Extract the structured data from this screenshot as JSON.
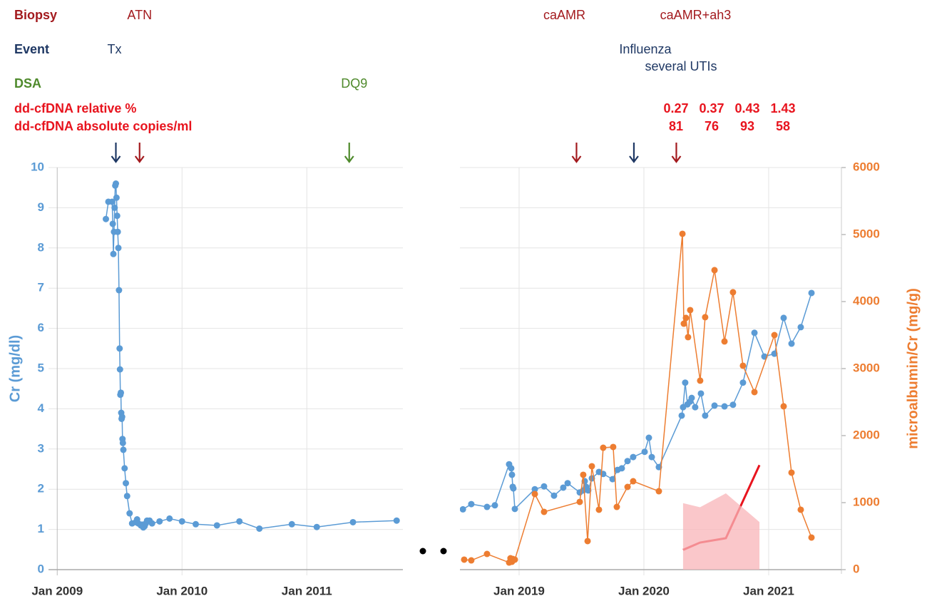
{
  "annotations": [
    {
      "label": "Biopsy",
      "color": "#a31a1e",
      "items": [
        {
          "label": "ATN",
          "x": 2009.66
        },
        {
          "label": "caAMR",
          "x": 2019.46
        },
        {
          "label": "caAMR+ah3",
          "x": 2020.26
        }
      ]
    },
    {
      "label": "Event",
      "color": "#1f3864",
      "items": [
        {
          "label": "Tx",
          "x": 2009.47
        },
        {
          "label": "Influenza",
          "sublabel": "several UTIs",
          "x": 2019.92
        }
      ]
    },
    {
      "label": "DSA",
      "color": "#4f8a2c",
      "items": [
        {
          "label": "DQ9",
          "x": 2011.34
        }
      ]
    }
  ],
  "chart_data": [
    {
      "type": "line",
      "ylabel": "Cr (mg/dl)",
      "xlim": [
        2008.93,
        2011.77
      ],
      "ylim": [
        0,
        10
      ],
      "yticks": [
        0,
        1,
        2,
        3,
        4,
        5,
        6,
        7,
        8,
        9,
        10
      ],
      "xticks": [
        {
          "value": 2009,
          "label": "Jan 2009"
        },
        {
          "value": 2010,
          "label": "Jan 2010"
        },
        {
          "value": 2011,
          "label": "Jan 2011"
        }
      ],
      "grid": true,
      "series": [
        {
          "color": "#5b9bd5",
          "x": [
            2009.39,
            2009.41,
            2009.44,
            2009.445,
            2009.45,
            2009.455,
            2009.46,
            2009.465,
            2009.47,
            2009.475,
            2009.48,
            2009.485,
            2009.49,
            2009.495,
            2009.5,
            2009.503,
            2009.506,
            2009.51,
            2009.513,
            2009.516,
            2009.52,
            2009.523,
            2009.526,
            2009.53,
            2009.54,
            2009.55,
            2009.56,
            2009.58,
            2009.6,
            2009.63,
            2009.64,
            2009.65,
            2009.67,
            2009.68,
            2009.69,
            2009.7,
            2009.71,
            2009.72,
            2009.74,
            2009.76,
            2009.82,
            2009.9,
            2010.0,
            2010.11,
            2010.28,
            2010.46,
            2010.62,
            2010.88,
            2011.08,
            2011.37,
            2011.72
          ],
          "values": [
            8.72,
            9.15,
            9.15,
            8.6,
            7.85,
            8.4,
            9.0,
            9.55,
            9.6,
            9.25,
            8.8,
            8.4,
            8.0,
            6.95,
            5.5,
            4.98,
            4.35,
            4.4,
            3.9,
            3.75,
            3.8,
            3.25,
            3.15,
            2.98,
            2.52,
            2.15,
            1.83,
            1.4,
            1.15,
            1.18,
            1.25,
            1.15,
            1.1,
            1.12,
            1.05,
            1.08,
            1.15,
            1.22,
            1.22,
            1.15,
            1.2,
            1.27,
            1.2,
            1.13,
            1.1,
            1.2,
            1.02,
            1.13,
            1.06,
            1.18,
            1.22
          ]
        }
      ]
    },
    {
      "type": "line",
      "y2label": "microalbumin/Cr (mg/g)",
      "xlim": [
        2018.526,
        2021.583
      ],
      "ylim": [
        0,
        10
      ],
      "y2lim": [
        0,
        6000
      ],
      "y2ticks": [
        0,
        1000,
        2000,
        3000,
        4000,
        5000,
        6000
      ],
      "y3lim": [
        0,
        5.5
      ],
      "y4lim": [
        0,
        490
      ],
      "xticks": [
        {
          "value": 2019,
          "label": "Jan 2019"
        },
        {
          "value": 2020,
          "label": "Jan 2020"
        },
        {
          "value": 2021,
          "label": "Jan 2021"
        }
      ],
      "grid": true,
      "series": [
        {
          "color": "#5b9bd5",
          "x": [
            2018.55,
            2018.617,
            2018.743,
            2018.806,
            2018.92,
            2018.937,
            2018.943,
            2018.949,
            2018.954,
            2018.966,
            2019.126,
            2019.2,
            2019.28,
            2019.354,
            2019.389,
            2019.486,
            2019.514,
            2019.526,
            2019.537,
            2019.554,
            2019.583,
            2019.64,
            2019.674,
            2019.749,
            2019.789,
            2019.823,
            2019.869,
            2019.914,
            2020.006,
            2020.04,
            2020.063,
            2020.12,
            2020.303,
            2020.314,
            2020.331,
            2020.349,
            2020.371,
            2020.383,
            2020.411,
            2020.457,
            2020.491,
            2020.566,
            2020.646,
            2020.714,
            2020.794,
            2020.886,
            2020.966,
            2021.046,
            2021.12,
            2021.183,
            2021.257,
            2021.343
          ],
          "values": [
            1.5,
            1.63,
            1.56,
            1.6,
            2.62,
            2.52,
            2.36,
            2.06,
            2.02,
            1.51,
            2.0,
            2.07,
            1.84,
            2.04,
            2.15,
            1.92,
            1.97,
            2.2,
            2.06,
            1.97,
            2.27,
            2.43,
            2.38,
            2.25,
            2.48,
            2.52,
            2.7,
            2.8,
            2.93,
            3.28,
            2.8,
            2.55,
            3.83,
            4.04,
            4.65,
            4.11,
            4.18,
            4.27,
            4.04,
            4.38,
            3.83,
            4.08,
            4.06,
            4.1,
            4.65,
            5.89,
            5.3,
            5.37,
            6.26,
            5.62,
            6.03,
            6.88
          ]
        },
        {
          "color": "#ed7d31",
          "axis": "y2",
          "x": [
            2018.56,
            2018.617,
            2018.743,
            2018.92,
            2018.931,
            2018.943,
            2018.949,
            2018.966,
            2019.126,
            2019.2,
            2019.486,
            2019.514,
            2019.549,
            2019.583,
            2019.64,
            2019.674,
            2019.754,
            2019.783,
            2019.869,
            2019.914,
            2020.12,
            2020.309,
            2020.32,
            2020.337,
            2020.354,
            2020.371,
            2020.451,
            2020.491,
            2020.566,
            2020.646,
            2020.714,
            2020.794,
            2020.886,
            2021.046,
            2021.12,
            2021.183,
            2021.257,
            2021.343
          ],
          "values": [
            149,
            138,
            234,
            106,
            170,
            117,
            160,
            149,
            1128,
            862,
            1011,
            1415,
            426,
            1543,
            894,
            1819,
            1830,
            936,
            1234,
            1319,
            1170,
            5011,
            3670,
            3756,
            3469,
            3873,
            2820,
            3767,
            4469,
            3405,
            4139,
            3043,
            2649,
            3500,
            2437,
            1447,
            894,
            479
          ]
        },
        {
          "name": "dd-cfDNA relative %",
          "color": "#e8141e",
          "axis": "y3",
          "x": [
            2020.314,
            2020.45,
            2020.657,
            2020.926
          ],
          "values": [
            0.27,
            0.37,
            0.43,
            1.43
          ]
        },
        {
          "name": "dd-cfDNA absolute copies/ml",
          "color": "#f8b4b8",
          "axis": "y4",
          "type": "area",
          "x": [
            2020.314,
            2020.45,
            2020.657,
            2020.926
          ],
          "values": [
            81,
            76,
            93,
            58
          ]
        }
      ]
    }
  ]
}
